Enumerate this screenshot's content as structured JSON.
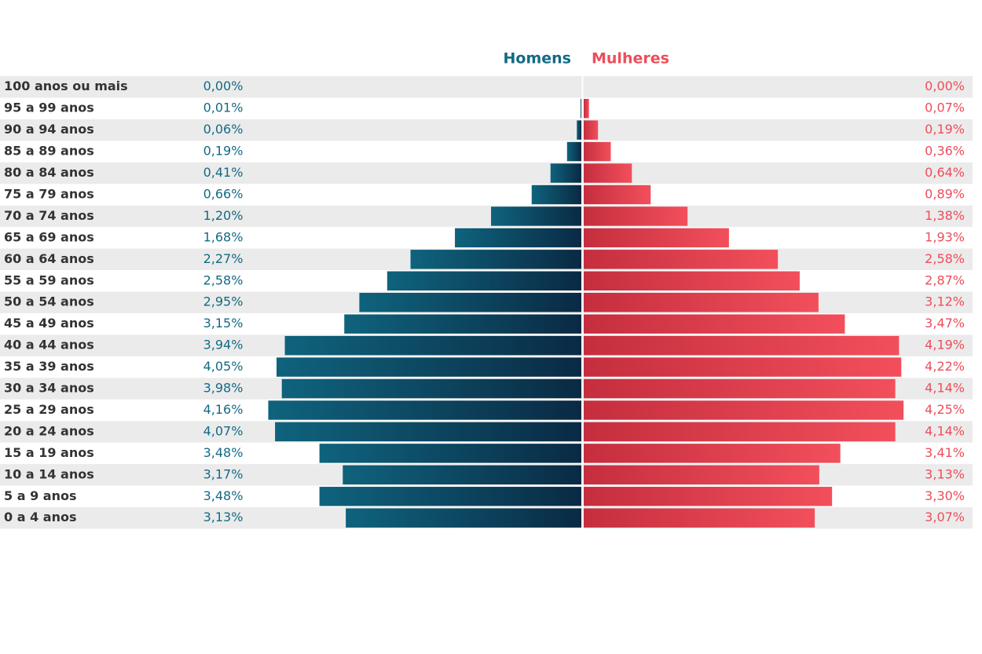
{
  "chart_data": {
    "type": "pyramid",
    "categories": [
      "100 anos ou mais",
      "95 a 99 anos",
      "90 a 94 anos",
      "85 a 89 anos",
      "80 a 84 anos",
      "75 a 79 anos",
      "70 a 74 anos",
      "65 a 69 anos",
      "60 a 64 anos",
      "55 a 59 anos",
      "50 a 54 anos",
      "45 a 49 anos",
      "40 a 44 anos",
      "35 a 39 anos",
      "30 a 34 anos",
      "25 a 29 anos",
      "20 a 24 anos",
      "15 a 19 anos",
      "10 a 14 anos",
      "5 a 9 anos",
      "0 a 4 anos"
    ],
    "series": [
      {
        "name": "Homens",
        "color": "#136a84",
        "values": [
          0.0,
          0.01,
          0.06,
          0.19,
          0.41,
          0.66,
          1.2,
          1.68,
          2.27,
          2.58,
          2.95,
          3.15,
          3.94,
          4.05,
          3.98,
          4.16,
          4.07,
          3.48,
          3.17,
          3.48,
          3.13
        ],
        "value_labels": [
          "0,00%",
          "0,01%",
          "0,06%",
          "0,19%",
          "0,41%",
          "0,66%",
          "1,20%",
          "1,68%",
          "2,27%",
          "2,58%",
          "2,95%",
          "3,15%",
          "3,94%",
          "4,05%",
          "3,98%",
          "4,16%",
          "4,07%",
          "3,48%",
          "3,17%",
          "3,48%",
          "3,13%"
        ]
      },
      {
        "name": "Mulheres",
        "color": "#ee4d5a",
        "values": [
          0.0,
          0.07,
          0.19,
          0.36,
          0.64,
          0.89,
          1.38,
          1.93,
          2.58,
          2.87,
          3.12,
          3.47,
          4.19,
          4.22,
          4.14,
          4.25,
          4.14,
          3.41,
          3.13,
          3.3,
          3.07
        ],
        "value_labels": [
          "0,00%",
          "0,07%",
          "0,19%",
          "0,36%",
          "0,64%",
          "0,89%",
          "1,38%",
          "1,93%",
          "2,58%",
          "2,87%",
          "3,12%",
          "3,47%",
          "4,19%",
          "4,22%",
          "4,14%",
          "4,25%",
          "4,14%",
          "3,41%",
          "3,13%",
          "3,30%",
          "3,07%"
        ]
      }
    ]
  }
}
